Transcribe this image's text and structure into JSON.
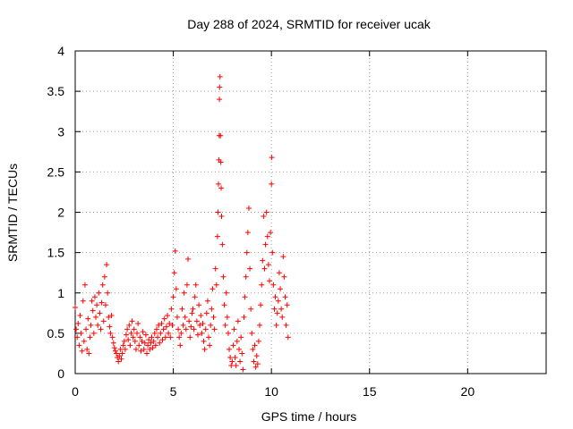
{
  "chart_data": {
    "type": "scatter",
    "title": "Day 288 of 2024, SRMTID for receiver ucak",
    "xlabel": "GPS time / hours",
    "ylabel": "SRMTID / TECUs",
    "xlim": [
      0,
      24
    ],
    "ylim": [
      0,
      4
    ],
    "xticks": [
      0,
      5,
      10,
      15,
      20
    ],
    "xtick_labels": [
      "0",
      "5",
      "10",
      "15",
      "20"
    ],
    "yticks": [
      0,
      0.5,
      1,
      1.5,
      2,
      2.5,
      3,
      3.5,
      4
    ],
    "ytick_labels": [
      "0",
      "0.5",
      "1",
      "1.5",
      "2",
      "2.5",
      "3",
      "3.5",
      "4"
    ],
    "grid": true,
    "marker": "+",
    "color": "#ff0000",
    "series": [
      {
        "name": "SRMTID",
        "points": [
          [
            0.0,
            0.82
          ],
          [
            0.05,
            0.55
          ],
          [
            0.1,
            0.45
          ],
          [
            0.15,
            0.62
          ],
          [
            0.2,
            0.35
          ],
          [
            0.25,
            0.72
          ],
          [
            0.3,
            0.5
          ],
          [
            0.35,
            0.28
          ],
          [
            0.4,
            0.9
          ],
          [
            0.45,
            0.4
          ],
          [
            0.5,
            1.1
          ],
          [
            0.55,
            0.55
          ],
          [
            0.6,
            0.3
          ],
          [
            0.65,
            0.68
          ],
          [
            0.7,
            0.25
          ],
          [
            0.75,
            0.45
          ],
          [
            0.8,
            0.6
          ],
          [
            0.85,
            0.9
          ],
          [
            0.9,
            0.78
          ],
          [
            0.95,
            0.5
          ],
          [
            1.0,
            0.95
          ],
          [
            1.05,
            0.7
          ],
          [
            1.1,
            0.85
          ],
          [
            1.15,
            0.6
          ],
          [
            1.2,
            1.0
          ],
          [
            1.25,
            0.75
          ],
          [
            1.3,
            0.55
          ],
          [
            1.35,
            0.88
          ],
          [
            1.4,
            1.1
          ],
          [
            1.45,
            0.65
          ],
          [
            1.5,
            1.2
          ],
          [
            1.55,
            0.85
          ],
          [
            1.6,
            1.35
          ],
          [
            1.65,
            1.0
          ],
          [
            1.7,
            0.7
          ],
          [
            1.75,
            0.58
          ],
          [
            1.8,
            0.5
          ],
          [
            1.85,
            0.72
          ],
          [
            1.9,
            0.45
          ],
          [
            1.95,
            0.38
          ],
          [
            2.0,
            0.32
          ],
          [
            2.05,
            0.28
          ],
          [
            2.1,
            0.25
          ],
          [
            2.15,
            0.2
          ],
          [
            2.2,
            0.15
          ],
          [
            2.25,
            0.22
          ],
          [
            2.3,
            0.3
          ],
          [
            2.35,
            0.18
          ],
          [
            2.4,
            0.25
          ],
          [
            2.45,
            0.35
          ],
          [
            2.5,
            0.4
          ],
          [
            2.55,
            0.3
          ],
          [
            2.6,
            0.48
          ],
          [
            2.65,
            0.55
          ],
          [
            2.7,
            0.42
          ],
          [
            2.75,
            0.6
          ],
          [
            2.8,
            0.35
          ],
          [
            2.85,
            0.5
          ],
          [
            2.9,
            0.65
          ],
          [
            2.95,
            0.45
          ],
          [
            3.0,
            0.55
          ],
          [
            3.05,
            0.4
          ],
          [
            3.1,
            0.3
          ],
          [
            3.15,
            0.5
          ],
          [
            3.2,
            0.62
          ],
          [
            3.25,
            0.35
          ],
          [
            3.3,
            0.45
          ],
          [
            3.35,
            0.28
          ],
          [
            3.4,
            0.4
          ],
          [
            3.45,
            0.52
          ],
          [
            3.5,
            0.3
          ],
          [
            3.55,
            0.38
          ],
          [
            3.6,
            0.48
          ],
          [
            3.65,
            0.25
          ],
          [
            3.7,
            0.35
          ],
          [
            3.75,
            0.42
          ],
          [
            3.8,
            0.3
          ],
          [
            3.85,
            0.38
          ],
          [
            3.9,
            0.45
          ],
          [
            3.95,
            0.32
          ],
          [
            4.0,
            0.4
          ],
          [
            4.05,
            0.5
          ],
          [
            4.1,
            0.35
          ],
          [
            4.15,
            0.55
          ],
          [
            4.2,
            0.45
          ],
          [
            4.25,
            0.6
          ],
          [
            4.3,
            0.38
          ],
          [
            4.35,
            0.5
          ],
          [
            4.4,
            0.62
          ],
          [
            4.45,
            0.42
          ],
          [
            4.5,
            0.55
          ],
          [
            4.55,
            0.68
          ],
          [
            4.6,
            0.45
          ],
          [
            4.65,
            0.58
          ],
          [
            4.7,
            0.72
          ],
          [
            4.75,
            0.5
          ],
          [
            4.8,
            0.62
          ],
          [
            4.85,
            0.45
          ],
          [
            4.9,
            0.8
          ],
          [
            4.95,
            0.6
          ],
          [
            5.0,
            0.95
          ],
          [
            5.05,
            1.25
          ],
          [
            5.1,
            1.52
          ],
          [
            5.15,
            1.05
          ],
          [
            5.2,
            0.7
          ],
          [
            5.25,
            0.55
          ],
          [
            5.3,
            0.45
          ],
          [
            5.35,
            0.35
          ],
          [
            5.4,
            0.5
          ],
          [
            5.45,
            0.8
          ],
          [
            5.5,
            0.6
          ],
          [
            5.55,
            1.0
          ],
          [
            5.6,
            0.7
          ],
          [
            5.65,
            0.55
          ],
          [
            5.7,
            1.1
          ],
          [
            5.75,
            1.42
          ],
          [
            5.8,
            0.65
          ],
          [
            5.85,
            0.45
          ],
          [
            5.9,
            0.58
          ],
          [
            5.95,
            0.75
          ],
          [
            6.0,
            0.8
          ],
          [
            6.05,
            0.55
          ],
          [
            6.1,
            0.95
          ],
          [
            6.15,
            1.1
          ],
          [
            6.2,
            0.65
          ],
          [
            6.25,
            0.48
          ],
          [
            6.3,
            0.85
          ],
          [
            6.35,
            0.6
          ],
          [
            6.4,
            0.72
          ],
          [
            6.45,
            0.5
          ],
          [
            6.5,
            0.62
          ],
          [
            6.55,
            0.4
          ],
          [
            6.6,
            0.3
          ],
          [
            6.65,
            0.55
          ],
          [
            6.7,
            0.75
          ],
          [
            6.75,
            0.9
          ],
          [
            6.8,
            0.45
          ],
          [
            6.85,
            0.35
          ],
          [
            6.9,
            0.6
          ],
          [
            6.95,
            0.8
          ],
          [
            7.0,
            1.05
          ],
          [
            7.05,
            0.7
          ],
          [
            7.1,
            0.55
          ],
          [
            7.15,
            1.3
          ],
          [
            7.2,
            1.1
          ],
          [
            7.25,
            1.7
          ],
          [
            7.28,
            2.0
          ],
          [
            7.3,
            2.35
          ],
          [
            7.32,
            2.65
          ],
          [
            7.34,
            2.95
          ],
          [
            7.35,
            3.4
          ],
          [
            7.36,
            3.55
          ],
          [
            7.38,
            3.68
          ],
          [
            7.4,
            2.95
          ],
          [
            7.42,
            2.62
          ],
          [
            7.44,
            2.3
          ],
          [
            7.46,
            1.95
          ],
          [
            7.5,
            1.6
          ],
          [
            7.55,
            1.2
          ],
          [
            7.6,
            0.85
          ],
          [
            7.65,
            0.6
          ],
          [
            7.7,
            1.0
          ],
          [
            7.75,
            0.7
          ],
          [
            7.8,
            0.5
          ],
          [
            7.85,
            0.3
          ],
          [
            7.9,
            0.2
          ],
          [
            7.95,
            0.1
          ],
          [
            8.0,
            0.15
          ],
          [
            8.05,
            0.35
          ],
          [
            8.1,
            0.55
          ],
          [
            8.15,
            0.2
          ],
          [
            8.2,
            0.1
          ],
          [
            8.25,
            0.4
          ],
          [
            8.3,
            0.65
          ],
          [
            8.35,
            0.3
          ],
          [
            8.4,
            0.15
          ],
          [
            8.45,
            0.45
          ],
          [
            8.5,
            0.25
          ],
          [
            8.55,
            0.05
          ],
          [
            8.6,
            0.7
          ],
          [
            8.65,
            0.95
          ],
          [
            8.7,
            1.2
          ],
          [
            8.75,
            1.5
          ],
          [
            8.8,
            1.75
          ],
          [
            8.85,
            2.05
          ],
          [
            8.9,
            1.3
          ],
          [
            8.95,
            0.8
          ],
          [
            9.0,
            0.5
          ],
          [
            9.05,
            0.3
          ],
          [
            9.1,
            0.15
          ],
          [
            9.15,
            0.35
          ],
          [
            9.2,
            0.08
          ],
          [
            9.25,
            0.22
          ],
          [
            9.3,
            0.12
          ],
          [
            9.35,
            0.4
          ],
          [
            9.4,
            0.6
          ],
          [
            9.45,
            0.85
          ],
          [
            9.5,
            1.1
          ],
          [
            9.55,
            1.4
          ],
          [
            9.6,
            1.95
          ],
          [
            9.65,
            1.3
          ],
          [
            9.7,
            1.6
          ],
          [
            9.75,
            2.0
          ],
          [
            9.8,
            1.7
          ],
          [
            9.85,
            1.35
          ],
          [
            9.9,
            1.15
          ],
          [
            9.95,
            1.75
          ],
          [
            10.0,
            2.35
          ],
          [
            10.02,
            2.68
          ],
          [
            10.05,
            1.5
          ],
          [
            10.1,
            1.1
          ],
          [
            10.15,
            0.8
          ],
          [
            10.2,
            0.95
          ],
          [
            10.25,
            0.6
          ],
          [
            10.3,
            0.75
          ],
          [
            10.35,
            0.9
          ],
          [
            10.4,
            1.25
          ],
          [
            10.45,
            1.05
          ],
          [
            10.5,
            0.8
          ],
          [
            10.55,
            0.7
          ],
          [
            10.6,
            1.45
          ],
          [
            10.65,
            1.2
          ],
          [
            10.7,
            0.95
          ],
          [
            10.75,
            0.6
          ],
          [
            10.8,
            0.85
          ],
          [
            10.85,
            0.45
          ]
        ]
      }
    ]
  }
}
